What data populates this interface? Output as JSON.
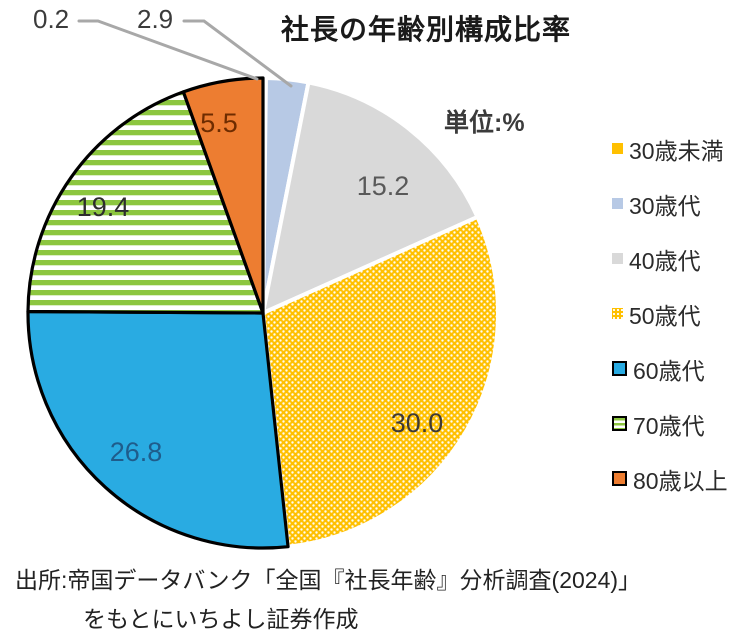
{
  "chart_data": {
    "type": "pie",
    "title": "社長の年齢別構成比率",
    "unit_label": "単位:%",
    "direction": "clockwise",
    "start_angle_deg": 0,
    "legend_position": "right",
    "slices": [
      {
        "name": "30歳未満",
        "value": 0.2,
        "label": "0.2",
        "fill": "#FFC000",
        "pattern": "solid",
        "stroke": "#FFFFFF",
        "label_placement": "outside",
        "label_color": "#3b3b3b"
      },
      {
        "name": "30歳代",
        "value": 2.9,
        "label": "2.9",
        "fill": "#B7C9E5",
        "pattern": "solid",
        "stroke": "#FFFFFF",
        "label_placement": "outside",
        "label_color": "#3b3b3b"
      },
      {
        "name": "40歳代",
        "value": 15.2,
        "label": "15.2",
        "fill": "#D9D9D9",
        "pattern": "solid",
        "stroke": "#FFFFFF",
        "label_placement": "inside",
        "label_color": "#595959"
      },
      {
        "name": "50歳代",
        "value": 30.0,
        "label": "30.0",
        "fill": "#FFC000",
        "pattern": "dots",
        "stroke": "#FFFFFF",
        "label_placement": "inside",
        "label_color": "#403a33"
      },
      {
        "name": "60歳代",
        "value": 26.8,
        "label": "26.8",
        "fill": "#29ABE2",
        "pattern": "solid",
        "stroke": "#000000",
        "label_placement": "inside",
        "label_color": "#1F5C8B"
      },
      {
        "name": "70歳代",
        "value": 19.4,
        "label": "19.4",
        "fill": "#8CC63F",
        "pattern": "stripes",
        "stroke": "#000000",
        "label_placement": "inside",
        "label_color": "#2d2d2d"
      },
      {
        "name": "80歳以上",
        "value": 5.5,
        "label": "5.5",
        "fill": "#ED7D31",
        "pattern": "solid",
        "stroke": "#000000",
        "label_placement": "inside",
        "label_color": "#6E2C00"
      }
    ],
    "colors": {
      "leader_line": "#A8A8A8",
      "stripe_green": "#8CC63F",
      "dot_base_gold": "#FFC000",
      "pattern_dot": "#FFFFFF"
    }
  },
  "source": {
    "line1": "出所:帝国データバンク「全国『社長年齢』分析調査(2024)」",
    "line2": "をもとにいちよし証券作成"
  }
}
